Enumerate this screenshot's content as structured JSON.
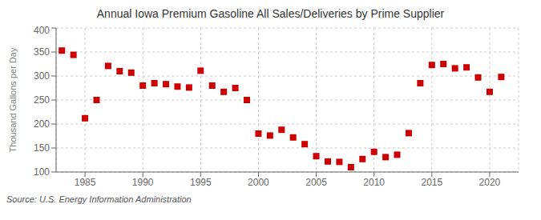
{
  "chart_data": {
    "type": "scatter",
    "title": "Annual Iowa Premium Gasoline All Sales/Deliveries by Prime Supplier",
    "ylabel": "Thousand Gallons per Day",
    "source": "Source: U.S. Energy Information Administration",
    "x": [
      1983,
      1984,
      1985,
      1986,
      1987,
      1988,
      1989,
      1990,
      1991,
      1992,
      1993,
      1994,
      1995,
      1996,
      1997,
      1998,
      1999,
      2000,
      2001,
      2002,
      2003,
      2004,
      2005,
      2006,
      2007,
      2008,
      2009,
      2010,
      2011,
      2012,
      2013,
      2014,
      2015,
      2016,
      2017,
      2018,
      2019,
      2020,
      2021
    ],
    "values": [
      353,
      344,
      212,
      250,
      321,
      310,
      307,
      280,
      285,
      283,
      278,
      276,
      311,
      280,
      267,
      275,
      250,
      180,
      176,
      188,
      172,
      158,
      133,
      122,
      121,
      110,
      127,
      142,
      131,
      136,
      181,
      285,
      323,
      325,
      316,
      318,
      297,
      267,
      298
    ],
    "color": "#cc0000",
    "marker": "square",
    "xlim": [
      1982.5,
      2022.5
    ],
    "xticks": [
      1985,
      1990,
      1995,
      2000,
      2005,
      2010,
      2015,
      2020
    ],
    "ylim": [
      100,
      400
    ],
    "yticks": [
      100,
      150,
      200,
      250,
      300,
      350,
      400
    ],
    "grid": true
  }
}
